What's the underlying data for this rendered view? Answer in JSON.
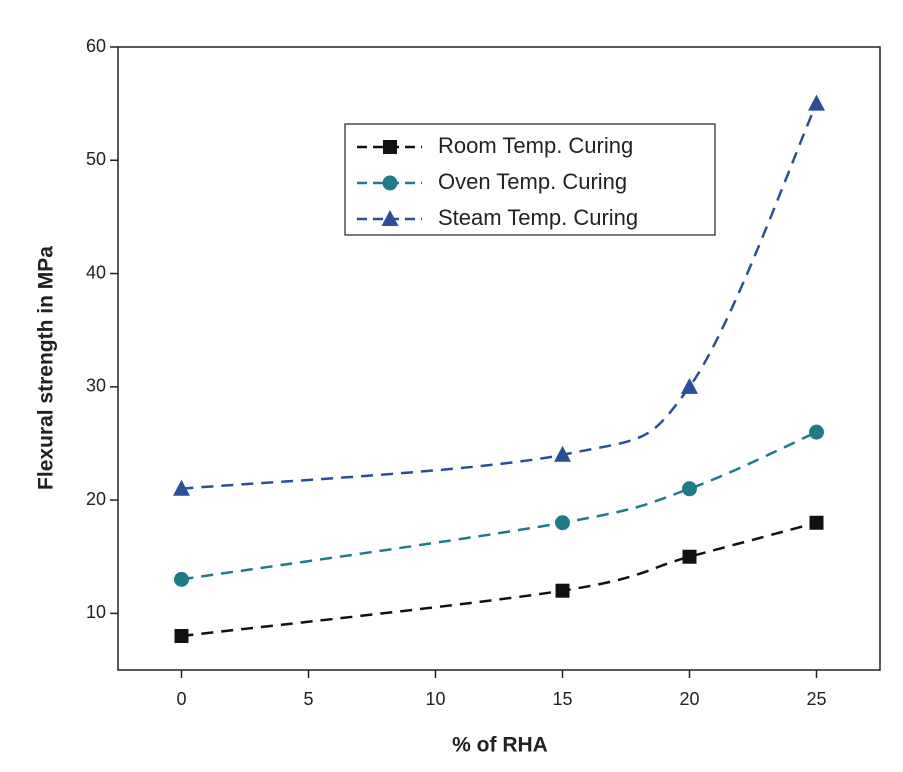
{
  "chart_data": {
    "type": "line",
    "x_label": "% of RHA",
    "y_label": "Flexural strength in MPa",
    "x": [
      0,
      15,
      20,
      25
    ],
    "series": [
      {
        "name": "Room Temp. Curing",
        "color": "#111111",
        "marker": "square",
        "values": [
          8,
          12,
          15,
          18
        ]
      },
      {
        "name": "Oven Temp. Curing",
        "color": "#1f7a8a",
        "marker": "circle",
        "values": [
          13,
          18,
          21,
          26
        ]
      },
      {
        "name": "Steam Temp. Curing",
        "color": "#2b4e9b",
        "marker": "triangle",
        "values": [
          21,
          24,
          30,
          55
        ]
      }
    ],
    "xlim": [
      -2.5,
      27.5
    ],
    "xticks": [
      0,
      5,
      10,
      15,
      20,
      25
    ],
    "ylim": [
      5,
      60
    ],
    "yticks": [
      10,
      20,
      30,
      40,
      50,
      60
    ],
    "grid": false,
    "legend": "top-center"
  }
}
